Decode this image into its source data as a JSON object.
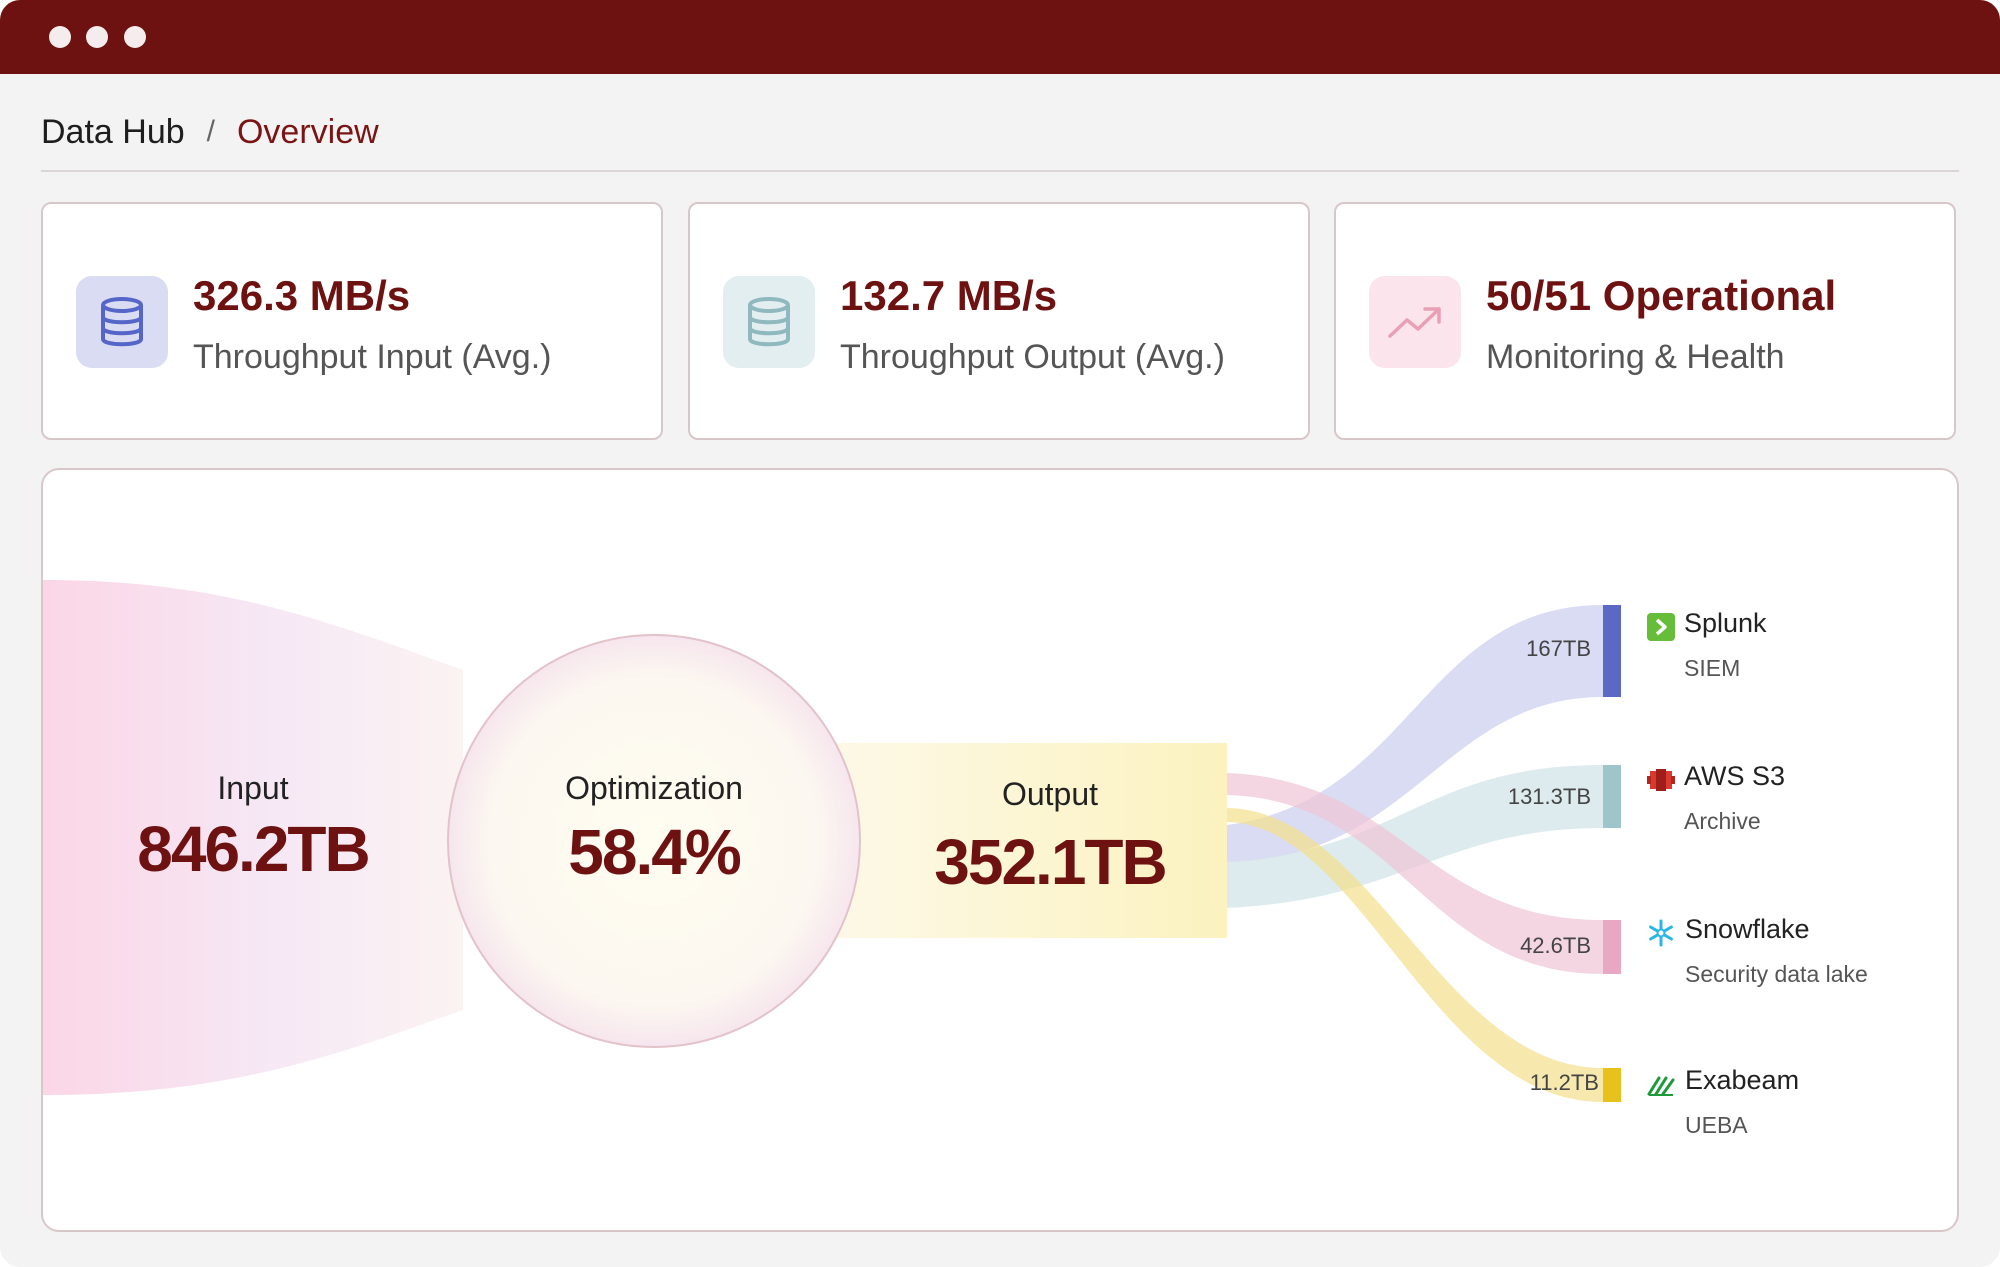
{
  "window": {
    "controls": [
      "close",
      "minimize",
      "maximize"
    ]
  },
  "breadcrumb": {
    "root": "Data Hub",
    "separator": "/",
    "current": "Overview"
  },
  "metrics": [
    {
      "value": "326.3 MB/s",
      "label": "Throughput Input (Avg.)",
      "icon": "database-icon",
      "tint": "#d9dcf2",
      "color": "#5566c8"
    },
    {
      "value": "132.7 MB/s",
      "label": "Throughput Output (Avg.)",
      "icon": "database-icon",
      "tint": "#e3eef0",
      "color": "#8fb8bf"
    },
    {
      "value": "50/51 Operational",
      "label": "Monitoring & Health",
      "icon": "trending-up-icon",
      "tint": "#fbe4ec",
      "color": "#e9a0b6"
    }
  ],
  "flow": {
    "input": {
      "label": "Input",
      "value": "846.2TB"
    },
    "optimization": {
      "label": "Optimization",
      "value": "58.4%"
    },
    "output": {
      "label": "Output",
      "value": "352.1TB"
    },
    "destinations": [
      {
        "amount": "167TB",
        "name": "Splunk",
        "type": "SIEM",
        "icon": "splunk-icon",
        "color": "#5b69c4"
      },
      {
        "amount": "131.3TB",
        "name": "AWS S3",
        "type": "Archive",
        "icon": "aws-s3-icon",
        "color": "#9dc5ca"
      },
      {
        "amount": "42.6TB",
        "name": "Snowflake",
        "type": "Security data lake",
        "icon": "snowflake-icon",
        "color": "#e8a8c4"
      },
      {
        "amount": "11.2TB",
        "name": "Exabeam",
        "type": "UEBA",
        "icon": "exabeam-icon",
        "color": "#e8c21c"
      }
    ]
  }
}
